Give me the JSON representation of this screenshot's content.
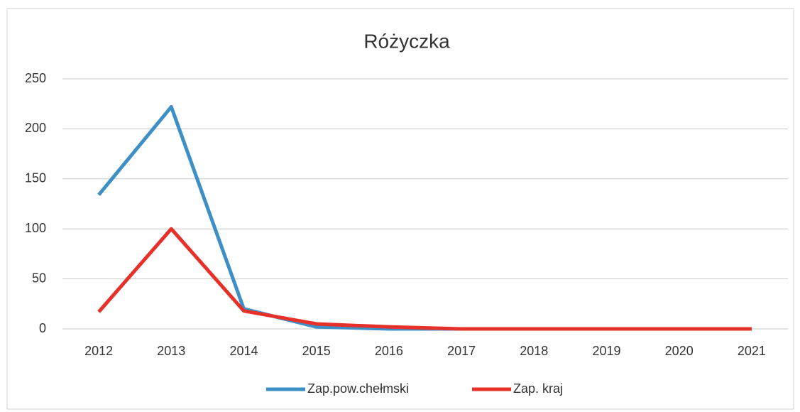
{
  "chart_data": {
    "type": "line",
    "title": "Różyczka",
    "categories": [
      "2012",
      "2013",
      "2014",
      "2015",
      "2016",
      "2017",
      "2018",
      "2019",
      "2020",
      "2021"
    ],
    "series": [
      {
        "name": "Zap.pow.chełmski",
        "color": "#3d8fc6",
        "values": [
          134,
          222,
          20,
          2,
          0,
          0,
          0,
          0,
          0,
          0
        ]
      },
      {
        "name": "Zap. kraj",
        "color": "#e8302a",
        "values": [
          17,
          100,
          18,
          5,
          2,
          0,
          0,
          0,
          0,
          0
        ]
      }
    ],
    "ylim": [
      0,
      250
    ],
    "yticks": [
      0,
      50,
      100,
      150,
      200,
      250
    ],
    "grid": true,
    "legend": "bottom"
  }
}
